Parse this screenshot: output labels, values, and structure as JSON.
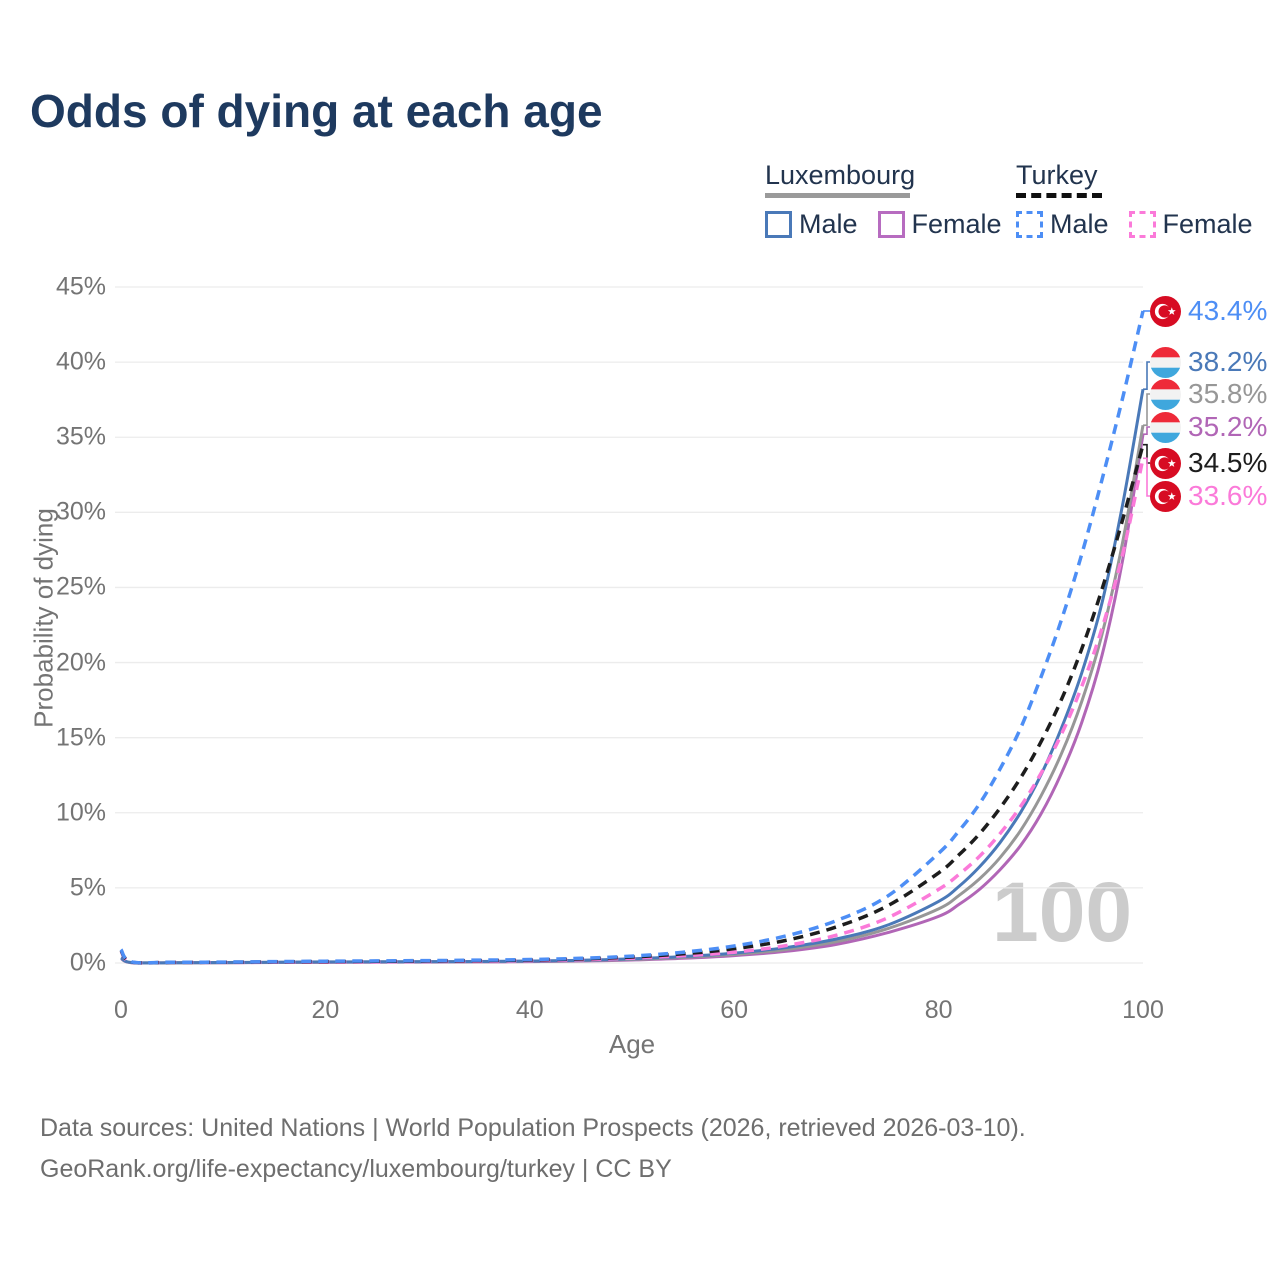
{
  "title": "Odds of dying at each age",
  "legend": {
    "groups": [
      {
        "name": "Luxembourg",
        "line_style": "solid",
        "underline_color": "#9a9a9a",
        "items": [
          {
            "label": "Male",
            "color": "#4a79b8"
          },
          {
            "label": "Female",
            "color": "#b76cc0"
          }
        ]
      },
      {
        "name": "Turkey",
        "line_style": "dashed",
        "underline_color": "#0f0f0f",
        "items": [
          {
            "label": "Male",
            "color": "#4d8ef5"
          },
          {
            "label": "Female",
            "color": "#fb7ad9"
          }
        ]
      }
    ]
  },
  "chart_data": {
    "type": "line",
    "title": "Odds of dying at each age",
    "xlabel": "Age",
    "ylabel": "Probability of dying",
    "xlim": [
      0,
      100
    ],
    "ylim": [
      0,
      45
    ],
    "x_ticks": [
      0,
      20,
      40,
      60,
      80,
      100
    ],
    "y_ticks_percent": [
      0,
      5,
      10,
      15,
      20,
      25,
      30,
      35,
      40,
      45
    ],
    "grid": "horizontal",
    "legend_position": "top-right",
    "watermark_age": "100",
    "ages": [
      0,
      1,
      5,
      10,
      15,
      20,
      25,
      30,
      35,
      40,
      45,
      50,
      55,
      60,
      65,
      70,
      75,
      80,
      82,
      84,
      86,
      88,
      90,
      92,
      94,
      96,
      98,
      100
    ],
    "series": [
      {
        "id": "turkey-male",
        "name": "Turkey Male",
        "country": "Turkey",
        "sex": "Male",
        "flag": "turkey",
        "color": "#4d8ef5",
        "dash": true,
        "end_value": 43.4,
        "end_label": "43.4%",
        "values": [
          0.9,
          0.08,
          0.05,
          0.06,
          0.09,
          0.12,
          0.14,
          0.16,
          0.19,
          0.23,
          0.31,
          0.46,
          0.72,
          1.13,
          1.79,
          2.82,
          4.45,
          7.3,
          8.8,
          10.6,
          12.9,
          15.6,
          19.0,
          22.8,
          27.2,
          32.2,
          37.6,
          43.4
        ]
      },
      {
        "id": "luxembourg-male",
        "name": "Luxembourg Male",
        "country": "Luxembourg",
        "sex": "Male",
        "flag": "luxembourg",
        "color": "#4a79b8",
        "dash": false,
        "end_value": 38.2,
        "end_label": "38.2%",
        "values": [
          0.35,
          0.03,
          0.02,
          0.03,
          0.05,
          0.07,
          0.08,
          0.09,
          0.1,
          0.13,
          0.18,
          0.28,
          0.43,
          0.66,
          1.02,
          1.6,
          2.52,
          4.1,
          5.1,
          6.4,
          8.0,
          10.0,
          12.5,
          15.6,
          19.3,
          24.0,
          30.5,
          38.2
        ]
      },
      {
        "id": "luxembourg-both",
        "name": "Luxembourg Both sexes",
        "country": "Luxembourg",
        "sex": "Both",
        "flag": "luxembourg",
        "color": "#979797",
        "dash": false,
        "end_value": 35.8,
        "end_label": "35.8%",
        "values": [
          0.32,
          0.03,
          0.02,
          0.02,
          0.04,
          0.06,
          0.07,
          0.08,
          0.09,
          0.11,
          0.16,
          0.24,
          0.37,
          0.57,
          0.89,
          1.42,
          2.28,
          3.6,
          4.5,
          5.6,
          7.0,
          8.8,
          11.1,
          13.9,
          17.4,
          21.9,
          28.0,
          35.8
        ]
      },
      {
        "id": "luxembourg-female",
        "name": "Luxembourg Female",
        "country": "Luxembourg",
        "sex": "Female",
        "flag": "luxembourg",
        "color": "#b166b6",
        "dash": false,
        "end_value": 35.2,
        "end_label": "35.2%",
        "values": [
          0.3,
          0.02,
          0.01,
          0.02,
          0.03,
          0.04,
          0.05,
          0.06,
          0.07,
          0.09,
          0.13,
          0.2,
          0.31,
          0.49,
          0.77,
          1.24,
          2.02,
          3.1,
          3.9,
          4.9,
          6.2,
          7.8,
          9.9,
          12.6,
          16.0,
          20.5,
          26.8,
          35.2
        ]
      },
      {
        "id": "turkey-both",
        "name": "Turkey Both sexes",
        "country": "Turkey",
        "sex": "Both",
        "flag": "turkey",
        "color": "#1d1d1d",
        "dash": true,
        "end_value": 34.5,
        "end_label": "34.5%",
        "values": [
          0.85,
          0.07,
          0.04,
          0.05,
          0.07,
          0.09,
          0.11,
          0.13,
          0.16,
          0.2,
          0.27,
          0.4,
          0.61,
          0.95,
          1.5,
          2.4,
          3.8,
          6.0,
          7.2,
          8.6,
          10.3,
          12.3,
          14.7,
          17.5,
          20.9,
          24.9,
          29.5,
          34.5
        ]
      },
      {
        "id": "turkey-female",
        "name": "Turkey Female",
        "country": "Turkey",
        "sex": "Female",
        "flag": "turkey",
        "color": "#fb7ad9",
        "dash": true,
        "end_value": 33.6,
        "end_label": "33.6%",
        "values": [
          0.8,
          0.06,
          0.04,
          0.04,
          0.05,
          0.06,
          0.08,
          0.1,
          0.12,
          0.16,
          0.22,
          0.32,
          0.48,
          0.72,
          1.15,
          1.85,
          3.0,
          4.9,
          5.9,
          7.1,
          8.6,
          10.4,
          12.6,
          15.2,
          18.4,
          22.3,
          27.2,
          33.6
        ]
      }
    ],
    "flag_colors": {
      "turkey_red": "#d70c23",
      "lux_red": "#ee2a39",
      "lux_white": "#f2f2f2",
      "lux_blue": "#3fa7dd"
    },
    "gridline_color": "#ececec"
  },
  "footer": {
    "line1": "Data sources: United Nations | World Population Prospects (2026, retrieved 2026-03-10).",
    "line2": "GeoRank.org/life-expectancy/luxembourg/turkey | CC BY"
  }
}
